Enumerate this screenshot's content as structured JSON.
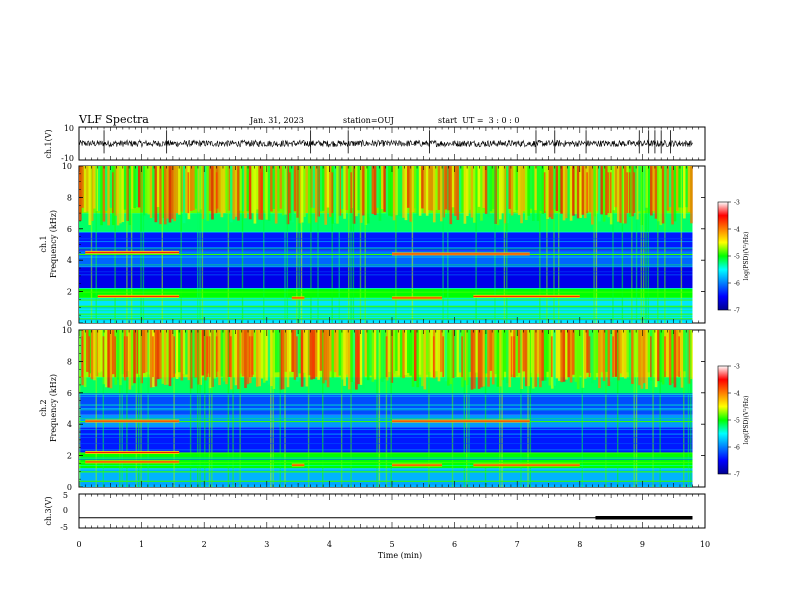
{
  "header": {
    "title": "VLF Spectra",
    "date": "Jan. 31, 2023",
    "station": "station=OUJ",
    "start_ut": "start  UT =  3 : 0 : 0"
  },
  "chart_data": [
    {
      "type": "line",
      "panel": "ch1-waveform",
      "ylabel": "ch.1(V)",
      "yticks": [
        "10",
        "-10"
      ],
      "ylim": [
        -10,
        10
      ],
      "x_range": [
        0,
        10
      ],
      "baseline": 0,
      "amplitude_typical": 2,
      "color": "#000000"
    },
    {
      "type": "heatmap",
      "panel": "ch1-spectrogram",
      "ylabel": "ch.1\nFrequency (kHz)",
      "ylabel_lines": [
        "ch.1",
        "Frequency (kHz)"
      ],
      "ylim": [
        0,
        10
      ],
      "yticks": [
        "0",
        "2",
        "4",
        "6",
        "8",
        "10"
      ],
      "xlim": [
        0,
        9.8
      ],
      "colorbar": {
        "label": "log(PSD)(V²/Hz)",
        "ticks": [
          "-3",
          "-4",
          "-5",
          "-6",
          "-7"
        ],
        "range": [
          -7,
          -3
        ]
      },
      "bands": [
        {
          "f_low": 0,
          "f_high": 1.6,
          "level": -5.6
        },
        {
          "f_low": 1.6,
          "f_high": 2.2,
          "level": -5.0
        },
        {
          "f_low": 2.2,
          "f_high": 3.6,
          "level": -6.6
        },
        {
          "f_low": 3.6,
          "f_high": 4.6,
          "level": -6.1
        },
        {
          "f_low": 4.6,
          "f_high": 5.8,
          "level": -6.4
        },
        {
          "f_low": 5.8,
          "f_high": 7.0,
          "level": -5.2
        },
        {
          "f_low": 7.0,
          "f_high": 10,
          "level": -4.8
        }
      ],
      "lines_khz": [
        0.3,
        0.6,
        1.1,
        1.5,
        2.0,
        4.4
      ],
      "emission_segments": [
        {
          "t0": 0.3,
          "t1": 1.6,
          "f": 1.7
        },
        {
          "t0": 3.4,
          "t1": 3.6,
          "f": 1.6
        },
        {
          "t0": 5.0,
          "t1": 5.8,
          "f": 1.6
        },
        {
          "t0": 6.3,
          "t1": 8.0,
          "f": 1.7
        },
        {
          "t0": 5.0,
          "t1": 7.2,
          "f": 4.4
        },
        {
          "t0": 0.1,
          "t1": 1.6,
          "f": 4.5
        }
      ]
    },
    {
      "type": "heatmap",
      "panel": "ch2-spectrogram",
      "ylabel": "ch.2\nFrequency (kHz)",
      "ylabel_lines": [
        "ch.2",
        "Frequency (kHz)"
      ],
      "ylim": [
        0,
        10
      ],
      "yticks": [
        "0",
        "2",
        "4",
        "6",
        "8",
        "10"
      ],
      "xlim": [
        0,
        9.8
      ],
      "colorbar": {
        "label": "log(PSD)(V²/Hz)",
        "ticks": [
          "-3",
          "-4",
          "-5",
          "-6",
          "-7"
        ],
        "range": [
          -7,
          -3
        ]
      },
      "bands": [
        {
          "f_low": 0,
          "f_high": 1.2,
          "level": -5.8
        },
        {
          "f_low": 1.2,
          "f_high": 2.2,
          "level": -5.0
        },
        {
          "f_low": 2.2,
          "f_high": 3.8,
          "level": -6.4
        },
        {
          "f_low": 3.8,
          "f_high": 4.6,
          "level": -5.9
        },
        {
          "f_low": 4.6,
          "f_high": 5.9,
          "level": -6.2
        },
        {
          "f_low": 5.9,
          "f_high": 7.0,
          "level": -5.2
        },
        {
          "f_low": 7.0,
          "f_high": 10,
          "level": -4.7
        }
      ],
      "lines_khz": [
        0.4,
        1.0,
        1.6,
        2.2,
        4.2
      ],
      "emission_segments": [
        {
          "t0": 0.1,
          "t1": 1.6,
          "f": 1.6
        },
        {
          "t0": 0.1,
          "t1": 1.6,
          "f": 2.2
        },
        {
          "t0": 3.4,
          "t1": 3.6,
          "f": 1.4
        },
        {
          "t0": 5.0,
          "t1": 5.8,
          "f": 1.4
        },
        {
          "t0": 6.3,
          "t1": 8.0,
          "f": 1.4
        },
        {
          "t0": 5.0,
          "t1": 7.2,
          "f": 4.2
        },
        {
          "t0": 0.1,
          "t1": 1.6,
          "f": 4.2
        }
      ]
    },
    {
      "type": "line",
      "panel": "ch3-signal",
      "ylabel": "ch.3(V)",
      "yticks": [
        "5",
        "0",
        "-5"
      ],
      "ylim": [
        -5,
        5
      ],
      "x_range": [
        0,
        9.8
      ],
      "level": -2,
      "thick_from": 8.25,
      "color": "#000000"
    }
  ],
  "xaxis": {
    "label": "Time (min)",
    "ticks": [
      "0",
      "1",
      "2",
      "3",
      "4",
      "5",
      "6",
      "7",
      "8",
      "9",
      "10"
    ],
    "xlim": [
      0,
      10
    ]
  }
}
